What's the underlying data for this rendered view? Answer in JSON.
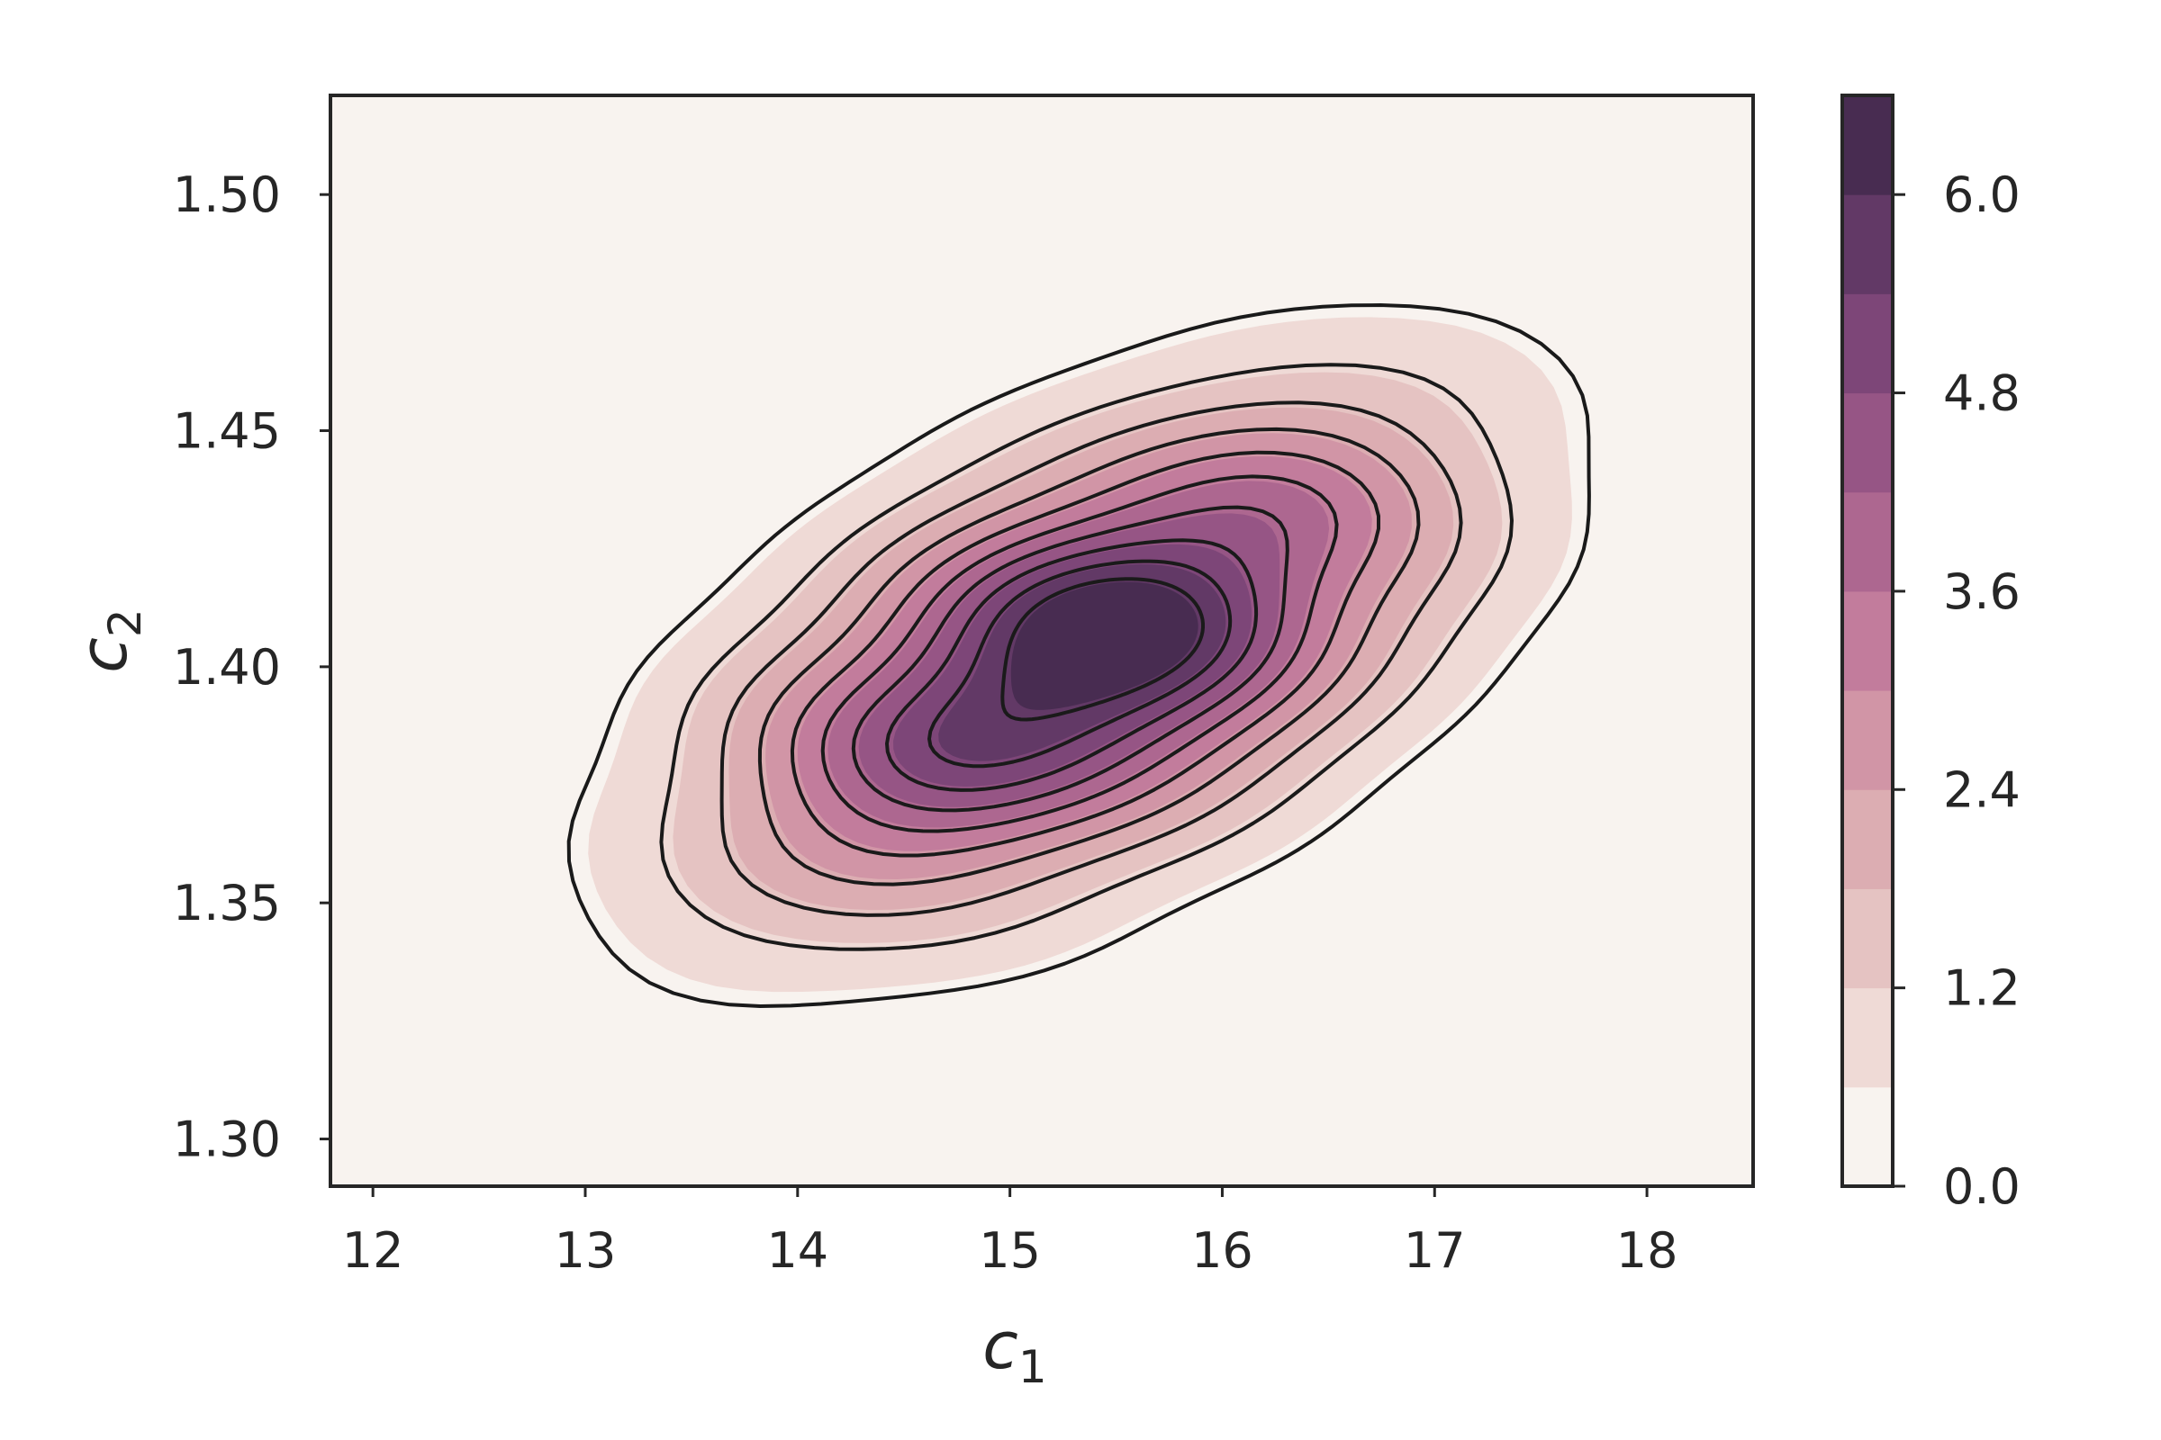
{
  "chart_data": {
    "type": "kde_contour",
    "title": "",
    "xlabel": "c",
    "xlabel_sub": "1",
    "ylabel": "c",
    "ylabel_sub": "2",
    "xlim": [
      11.8,
      18.5
    ],
    "ylim": [
      1.29,
      1.521
    ],
    "xticks": [
      12,
      13,
      14,
      15,
      16,
      17,
      18
    ],
    "yticks": [
      1.3,
      1.35,
      1.4,
      1.45,
      1.5
    ],
    "ytick_labels": [
      "1.30",
      "1.35",
      "1.40",
      "1.45",
      "1.50"
    ],
    "grid": false,
    "colorbar": {
      "vmin": 0.0,
      "vmax": 6.6,
      "ticks": [
        0.0,
        1.2,
        2.4,
        3.6,
        4.8,
        6.0
      ],
      "tick_labels": [
        "0.0",
        "1.2",
        "2.4",
        "3.6",
        "4.8",
        "6.0"
      ],
      "levels": [
        0.0,
        0.6,
        1.2,
        1.8,
        2.4,
        3.0,
        3.6,
        4.2,
        4.8,
        5.4,
        6.0,
        6.6
      ],
      "colors": [
        "#f8f3ef",
        "#efdad6",
        "#e5c3c2",
        "#dcadb2",
        "#d195a6",
        "#c27c9c",
        "#ad6790",
        "#965585",
        "#7d4678",
        "#623966",
        "#482c51"
      ]
    },
    "distribution": {
      "mean": [
        15.35,
        1.402
      ],
      "std": [
        1.07,
        0.033
      ],
      "correlation": 0.55,
      "peak_density": 6.5
    },
    "contour_line_levels": [
      0.5,
      1.1,
      1.7,
      2.3,
      2.9,
      3.5,
      4.1,
      4.7,
      5.3,
      5.9
    ],
    "line_color": "#1a1a1a"
  }
}
